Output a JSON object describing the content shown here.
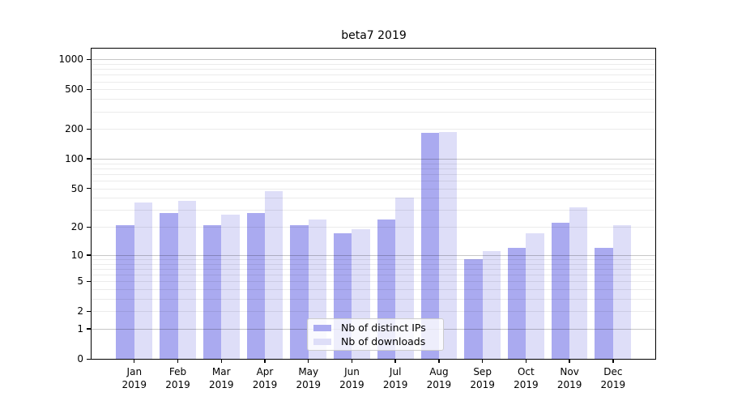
{
  "chart_data": {
    "type": "bar",
    "title": "beta7 2019",
    "categories": [
      "Jan",
      "Feb",
      "Mar",
      "Apr",
      "May",
      "Jun",
      "Jul",
      "Aug",
      "Sep",
      "Oct",
      "Nov",
      "Dec"
    ],
    "year": "2019",
    "series": [
      {
        "name": "Nb of distinct IPs",
        "color": "#aaaaf0",
        "values": [
          21,
          28,
          21,
          28,
          21,
          17,
          24,
          182,
          9,
          12,
          22,
          12
        ]
      },
      {
        "name": "Nb of downloads",
        "color": "#dedef8",
        "values": [
          36,
          37,
          27,
          47,
          24,
          19,
          40,
          186,
          11,
          17,
          32,
          21
        ]
      }
    ],
    "yscale": "log1p",
    "yticks": [
      0,
      1,
      2,
      5,
      10,
      20,
      50,
      100,
      200,
      500,
      1000
    ],
    "ylim": [
      0,
      1280
    ],
    "grid": true,
    "legend_position": "lower center"
  }
}
